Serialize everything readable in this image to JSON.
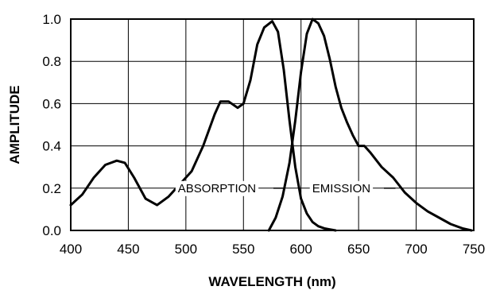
{
  "chart_data": {
    "type": "line",
    "title": "",
    "xlabel": "WAVELENGTH (nm)",
    "ylabel": "AMPLITUDE",
    "xlim": [
      400,
      750
    ],
    "ylim": [
      0,
      1.0
    ],
    "xticks": [
      400,
      450,
      500,
      550,
      600,
      650,
      700,
      750
    ],
    "yticks": [
      0.0,
      0.2,
      0.4,
      0.6,
      0.8,
      1.0
    ],
    "xtick_labels": [
      "400",
      "450",
      "500",
      "550",
      "600",
      "650",
      "700",
      "750"
    ],
    "ytick_labels": [
      "0.0",
      "0.2",
      "0.4",
      "0.6",
      "0.8",
      "1.0"
    ],
    "grid": true,
    "series": [
      {
        "name": "ABSORPTION",
        "color": "#000000",
        "x": [
          400,
          410,
          420,
          430,
          440,
          447,
          455,
          465,
          475,
          485,
          495,
          505,
          515,
          525,
          530,
          537,
          545,
          550,
          556,
          562,
          568,
          575,
          580,
          585,
          590,
          595,
          600,
          605,
          610,
          615,
          620,
          625,
          630
        ],
        "y": [
          0.12,
          0.17,
          0.25,
          0.31,
          0.33,
          0.32,
          0.25,
          0.15,
          0.12,
          0.16,
          0.22,
          0.28,
          0.4,
          0.55,
          0.61,
          0.61,
          0.58,
          0.6,
          0.71,
          0.88,
          0.96,
          0.99,
          0.94,
          0.76,
          0.52,
          0.3,
          0.15,
          0.08,
          0.04,
          0.02,
          0.01,
          0.005,
          0.0
        ]
      },
      {
        "name": "EMISSION",
        "color": "#000000",
        "x": [
          572,
          578,
          584,
          590,
          595,
          600,
          605,
          610,
          615,
          620,
          625,
          630,
          635,
          640,
          645,
          650,
          655,
          660,
          670,
          680,
          690,
          700,
          710,
          720,
          730,
          740,
          748
        ],
        "y": [
          0.0,
          0.06,
          0.16,
          0.32,
          0.52,
          0.75,
          0.93,
          1.0,
          0.98,
          0.92,
          0.81,
          0.68,
          0.58,
          0.51,
          0.45,
          0.4,
          0.4,
          0.37,
          0.3,
          0.25,
          0.18,
          0.13,
          0.09,
          0.06,
          0.03,
          0.01,
          0.0
        ]
      }
    ],
    "annotations": [
      {
        "text": "ABSORPTION",
        "x": 527,
        "y": 0.2
      },
      {
        "text": "EMISSION",
        "x": 635,
        "y": 0.2
      }
    ]
  }
}
